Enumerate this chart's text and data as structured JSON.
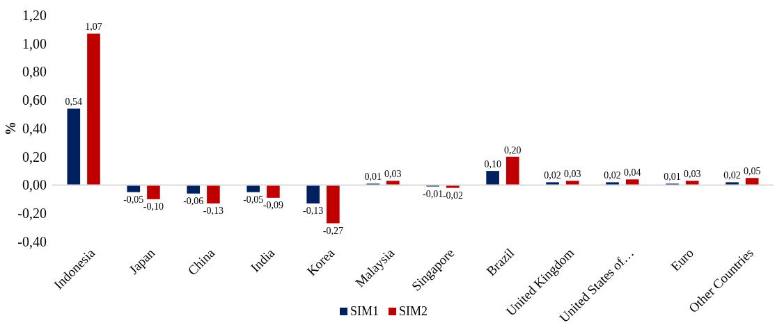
{
  "chart_data": {
    "type": "bar",
    "ylabel": "%",
    "categories": [
      "Indonesia",
      "Japan",
      "China",
      "India",
      "Korea",
      "Malaysia",
      "Singapore",
      "Brazil",
      "United Kingdom",
      "United States of…",
      "Euro",
      "Other Countries"
    ],
    "series": [
      {
        "name": "SIM1",
        "color": "#002060",
        "values": [
          0.54,
          -0.05,
          -0.06,
          -0.05,
          -0.13,
          0.01,
          -0.01,
          0.1,
          0.02,
          0.02,
          0.01,
          0.02
        ],
        "value_labels": [
          "0,54",
          "-0,05",
          "-0,06",
          "-0,05",
          "-0,13",
          "0,01",
          "-0,01",
          "0,10",
          "0,02",
          "0,02",
          "0,01",
          "0,02"
        ]
      },
      {
        "name": "SIM2",
        "color": "#c00000",
        "values": [
          1.07,
          -0.1,
          -0.13,
          -0.09,
          -0.27,
          0.03,
          -0.02,
          0.2,
          0.03,
          0.04,
          0.03,
          0.05
        ],
        "value_labels": [
          "1,07",
          "-0,10",
          "-0,13",
          "-0,09",
          "-0,27",
          "0,03",
          "-0,02",
          "0,20",
          "0,03",
          "0,04",
          "0,03",
          "0,05"
        ]
      }
    ],
    "ylim": [
      -0.4,
      1.2
    ],
    "yticks": [
      {
        "value": -0.4,
        "label": "-0,40"
      },
      {
        "value": -0.2,
        "label": "-0,20"
      },
      {
        "value": 0,
        "label": "0,00"
      },
      {
        "value": 0.2,
        "label": "0,20"
      },
      {
        "value": 0.4,
        "label": "0,40"
      },
      {
        "value": 0.6,
        "label": "0,60"
      },
      {
        "value": 0.8,
        "label": "0,80"
      },
      {
        "value": 1.0,
        "label": "1,00"
      },
      {
        "value": 1.2,
        "label": "1,20"
      }
    ],
    "legend": "bottom"
  }
}
